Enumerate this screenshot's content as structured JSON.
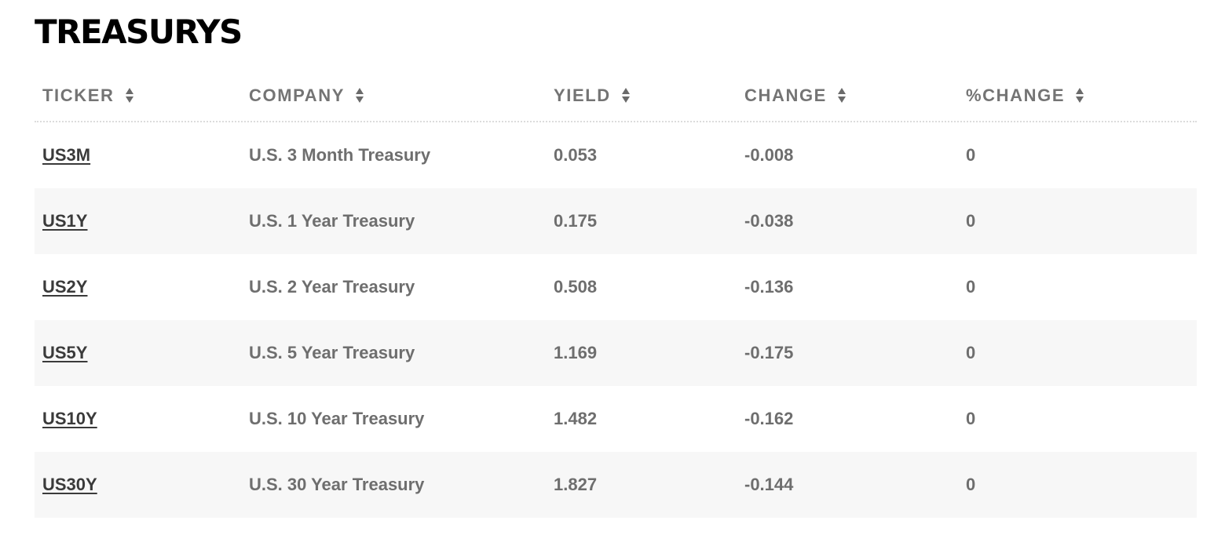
{
  "section": {
    "title": "TREASURYS"
  },
  "table": {
    "columns": [
      {
        "label": "TICKER",
        "icon": "sort-icon"
      },
      {
        "label": "COMPANY",
        "icon": "sort-icon"
      },
      {
        "label": "YIELD",
        "icon": "sort-icon"
      },
      {
        "label": "CHANGE",
        "icon": "sort-icon"
      },
      {
        "label": "%CHANGE",
        "icon": "sort-icon"
      }
    ],
    "rows": [
      {
        "ticker": "US3M",
        "company": "U.S. 3 Month Treasury",
        "yield": "0.053",
        "change": "-0.008",
        "pct_change": "0"
      },
      {
        "ticker": "US1Y",
        "company": "U.S. 1 Year Treasury",
        "yield": "0.175",
        "change": "-0.038",
        "pct_change": "0"
      },
      {
        "ticker": "US2Y",
        "company": "U.S. 2 Year Treasury",
        "yield": "0.508",
        "change": "-0.136",
        "pct_change": "0"
      },
      {
        "ticker": "US5Y",
        "company": "U.S. 5 Year Treasury",
        "yield": "1.169",
        "change": "-0.175",
        "pct_change": "0"
      },
      {
        "ticker": "US10Y",
        "company": "U.S. 10 Year Treasury",
        "yield": "1.482",
        "change": "-0.162",
        "pct_change": "0"
      },
      {
        "ticker": "US30Y",
        "company": "U.S. 30 Year Treasury",
        "yield": "1.827",
        "change": "-0.144",
        "pct_change": "0"
      }
    ]
  },
  "colors": {
    "title": "#000000",
    "header_text": "#747474",
    "cell_text": "#6e6e6e",
    "link_text": "#3a3a3a",
    "row_alt_bg": "#f7f7f7"
  }
}
